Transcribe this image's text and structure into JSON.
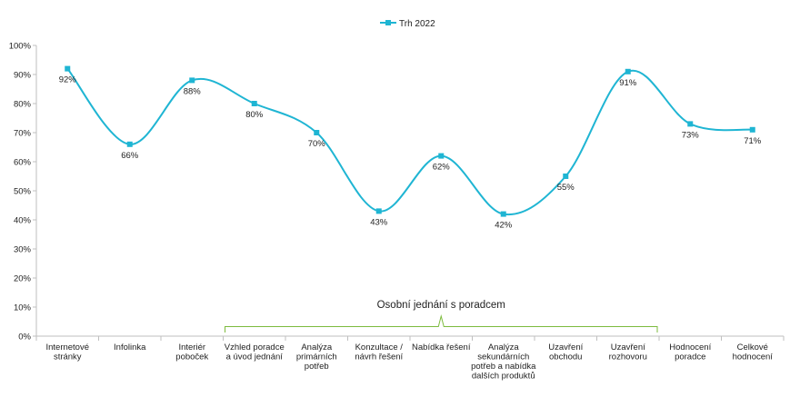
{
  "chart_data": {
    "type": "line",
    "title": "",
    "xlabel": "",
    "ylabel": "",
    "ylim": [
      0,
      100
    ],
    "y_ticks": [
      "0%",
      "10%",
      "20%",
      "30%",
      "40%",
      "50%",
      "60%",
      "70%",
      "80%",
      "90%",
      "100%"
    ],
    "y_tick_values": [
      0,
      10,
      20,
      30,
      40,
      50,
      60,
      70,
      80,
      90,
      100
    ],
    "grid": false,
    "legend_position": "top-center",
    "categories": [
      [
        "Internetové",
        "stránky"
      ],
      [
        "Infolinka"
      ],
      [
        "Interiér",
        "poboček"
      ],
      [
        "Vzhled poradce",
        "a úvod jednání"
      ],
      [
        "Analýza",
        "primárních",
        "potřeb"
      ],
      [
        "Konzultace /",
        "návrh řešení"
      ],
      [
        "Nabídka řešení"
      ],
      [
        "Analýza",
        "sekundárních",
        "potřeb a nabídka",
        "dalších produktů"
      ],
      [
        "Uzavření",
        "obchodu"
      ],
      [
        "Uzavření",
        "rozhovoru"
      ],
      [
        "Hodnocení",
        "poradce"
      ],
      [
        "Celkové",
        "hodnocení"
      ]
    ],
    "series": [
      {
        "name": "Trh 2022",
        "color": "#1FB5D3",
        "values": [
          92,
          66,
          88,
          80,
          70,
          43,
          62,
          42,
          55,
          91,
          73,
          71
        ],
        "labels": [
          "92%",
          "66%",
          "88%",
          "80%",
          "70%",
          "43%",
          "62%",
          "42%",
          "55%",
          "91%",
          "73%",
          "71%"
        ]
      }
    ],
    "annotations": [
      {
        "type": "bracket",
        "text": "Osobní jednání s poradcem",
        "from_category": 3,
        "to_category": 9,
        "color": "#7DBB3E"
      }
    ]
  }
}
